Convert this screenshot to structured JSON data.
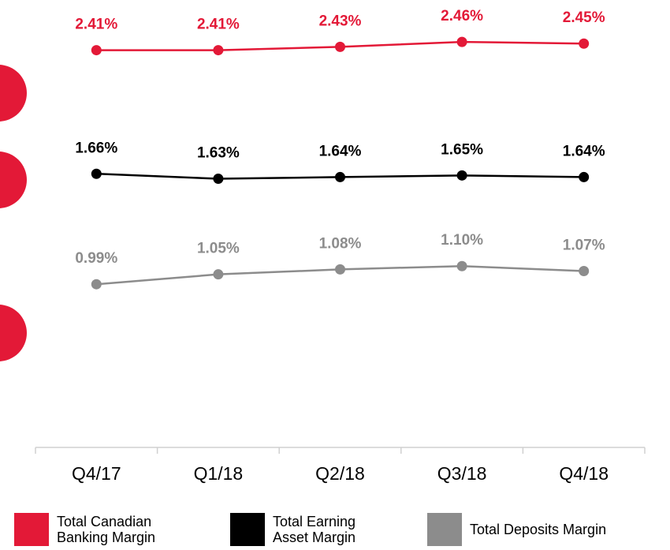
{
  "chart_data": {
    "type": "line",
    "categories": [
      "Q4/17",
      "Q1/18",
      "Q2/18",
      "Q3/18",
      "Q4/18"
    ],
    "ylim": [
      0,
      2.7
    ],
    "series": [
      {
        "name": "Total Canadian Banking Margin",
        "color": "#e31937",
        "values": [
          2.41,
          2.41,
          2.43,
          2.46,
          2.45
        ],
        "value_labels": [
          "2.41%",
          "2.41%",
          "2.43%",
          "2.46%",
          "2.45%"
        ]
      },
      {
        "name": "Total Earning Asset Margin",
        "color": "#000000",
        "values": [
          1.66,
          1.63,
          1.64,
          1.65,
          1.64
        ],
        "value_labels": [
          "1.66%",
          "1.63%",
          "1.64%",
          "1.65%",
          "1.64%"
        ]
      },
      {
        "name": "Total Deposits Margin",
        "color": "#8c8c8c",
        "values": [
          0.99,
          1.05,
          1.08,
          1.1,
          1.07
        ],
        "value_labels": [
          "0.99%",
          "1.05%",
          "1.08%",
          "1.10%",
          "1.07%"
        ]
      }
    ]
  }
}
